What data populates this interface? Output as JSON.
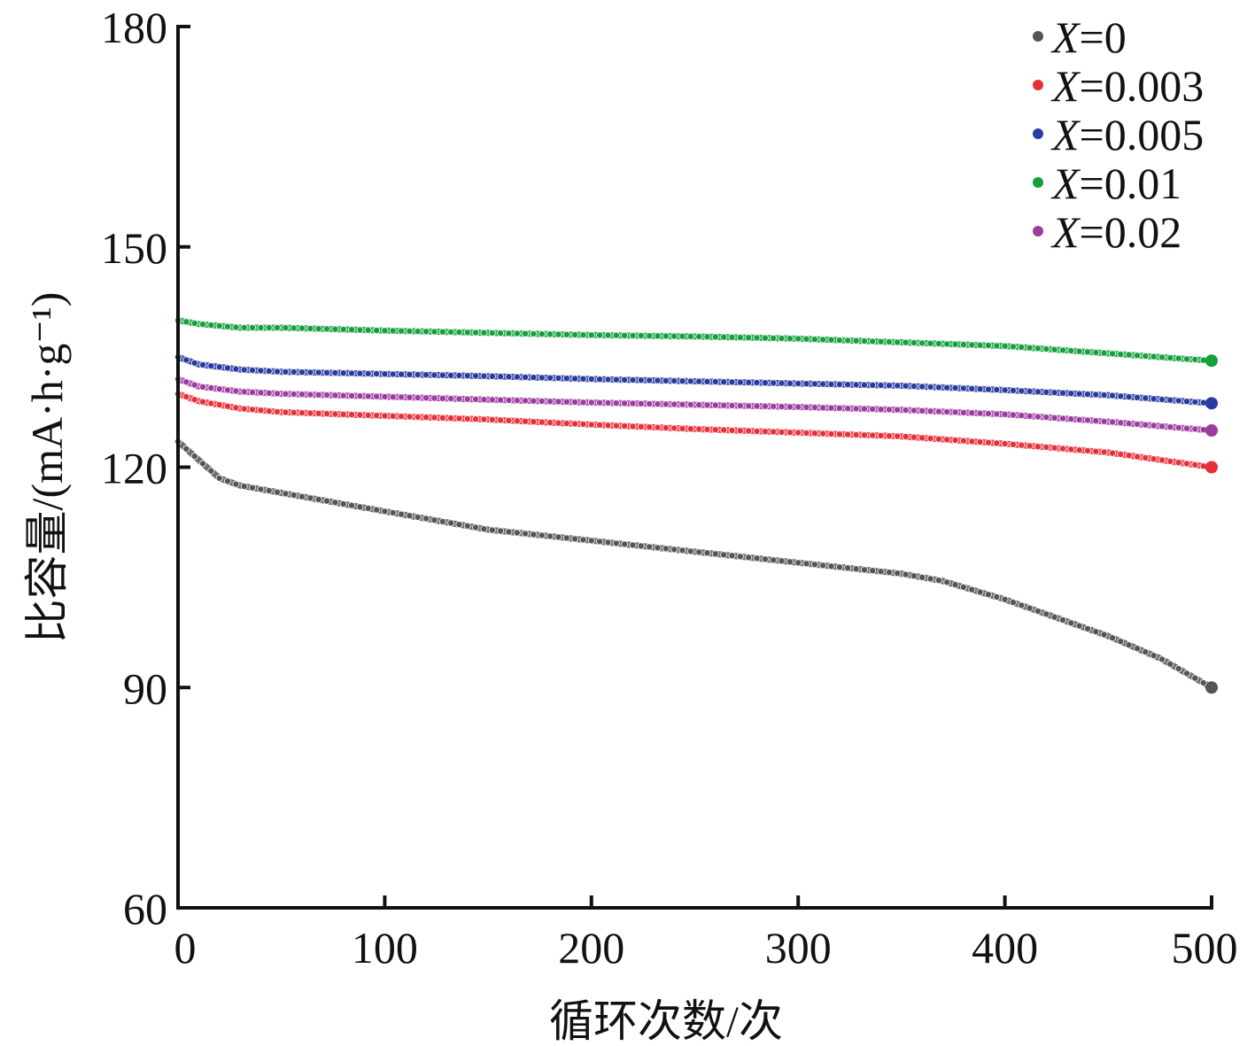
{
  "chart_data": {
    "type": "scatter",
    "title": "",
    "xlabel": "循环次数/次",
    "ylabel": "比容量/(mA·h·g⁻¹)",
    "xlim": [
      0,
      500
    ],
    "ylim": [
      60,
      180
    ],
    "x_ticks": [
      "0",
      "100",
      "200",
      "300",
      "400",
      "500"
    ],
    "y_ticks": [
      "60",
      "90",
      "120",
      "150",
      "180"
    ],
    "grid": false,
    "legend_position": "top-right",
    "series": [
      {
        "name": "X=0",
        "legend_var": "X",
        "legend_value": "=0",
        "color": "#555555",
        "points": [
          [
            0,
            123.5
          ],
          [
            10,
            121
          ],
          [
            20,
            118.5
          ],
          [
            30,
            117.5
          ],
          [
            50,
            116.5
          ],
          [
            100,
            114
          ],
          [
            150,
            111.5
          ],
          [
            200,
            110
          ],
          [
            250,
            108.5
          ],
          [
            300,
            107
          ],
          [
            350,
            105.5
          ],
          [
            370,
            104.5
          ],
          [
            400,
            102
          ],
          [
            430,
            99
          ],
          [
            450,
            97
          ],
          [
            475,
            94
          ],
          [
            500,
            90
          ]
        ]
      },
      {
        "name": "X=0.003",
        "legend_var": "X",
        "legend_value": "=0.003",
        "color": "#e8303a",
        "points": [
          [
            0,
            130
          ],
          [
            10,
            129
          ],
          [
            30,
            128
          ],
          [
            50,
            127.5
          ],
          [
            100,
            127
          ],
          [
            150,
            126.5
          ],
          [
            200,
            125.8
          ],
          [
            250,
            125.2
          ],
          [
            300,
            124.7
          ],
          [
            350,
            124.2
          ],
          [
            400,
            123.2
          ],
          [
            450,
            122
          ],
          [
            500,
            120
          ]
        ]
      },
      {
        "name": "X=0.005",
        "legend_var": "X",
        "legend_value": "=0.005",
        "color": "#2a3a9e",
        "points": [
          [
            0,
            135
          ],
          [
            10,
            134
          ],
          [
            30,
            133.3
          ],
          [
            50,
            133
          ],
          [
            100,
            132.7
          ],
          [
            150,
            132.4
          ],
          [
            200,
            132
          ],
          [
            250,
            131.7
          ],
          [
            300,
            131.4
          ],
          [
            350,
            131.1
          ],
          [
            400,
            130.5
          ],
          [
            450,
            129.8
          ],
          [
            500,
            128.7
          ]
        ]
      },
      {
        "name": "X=0.01",
        "legend_var": "X",
        "legend_value": "=0.01",
        "color": "#14a03c",
        "points": [
          [
            0,
            140
          ],
          [
            10,
            139.5
          ],
          [
            30,
            139
          ],
          [
            50,
            139
          ],
          [
            100,
            138.6
          ],
          [
            150,
            138.3
          ],
          [
            200,
            138
          ],
          [
            250,
            137.8
          ],
          [
            300,
            137.5
          ],
          [
            350,
            137
          ],
          [
            400,
            136.5
          ],
          [
            450,
            135.5
          ],
          [
            500,
            134.5
          ]
        ]
      },
      {
        "name": "X=0.02",
        "legend_var": "X",
        "legend_value": "=0.02",
        "color": "#9b3d9e",
        "points": [
          [
            0,
            132
          ],
          [
            10,
            131
          ],
          [
            30,
            130.3
          ],
          [
            50,
            130
          ],
          [
            100,
            129.6
          ],
          [
            150,
            129.2
          ],
          [
            200,
            128.8
          ],
          [
            250,
            128.5
          ],
          [
            300,
            128.2
          ],
          [
            350,
            127.8
          ],
          [
            400,
            127.2
          ],
          [
            450,
            126.2
          ],
          [
            500,
            125
          ]
        ]
      }
    ]
  }
}
